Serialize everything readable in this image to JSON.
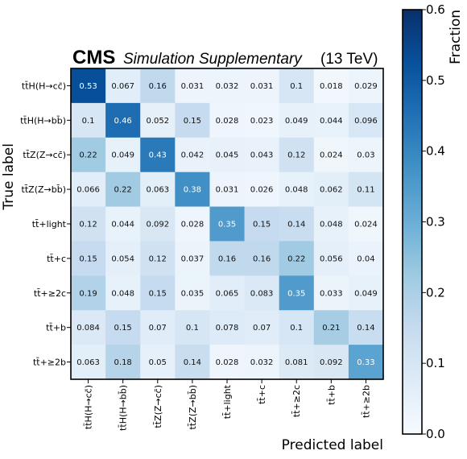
{
  "header": {
    "experiment": "CMS",
    "label": "Simulation Supplementary",
    "energy": "(13 TeV)"
  },
  "chart_data": {
    "type": "heatmap",
    "xlabel": "Predicted label",
    "ylabel": "True label",
    "row_labels": [
      "tt̄H(H→cc̄)",
      "tt̄H(H→bb̄)",
      "tt̄Z(Z→cc̄)",
      "tt̄Z(Z→bb̄)",
      "tt̄+light",
      "tt̄+c",
      "tt̄+≥2c",
      "tt̄+b",
      "tt̄+≥2b"
    ],
    "col_labels": [
      "tt̄H(H→cc̄)",
      "tt̄H(H→bb̄)",
      "tt̄Z(Z→cc̄)",
      "tt̄Z(Z→bb̄)",
      "tt̄+light",
      "tt̄+c",
      "tt̄+≥2c",
      "tt̄+b",
      "tt̄+≥2b"
    ],
    "values": [
      [
        "0.53",
        "0.067",
        "0.16",
        "0.031",
        "0.032",
        "0.031",
        "0.1",
        "0.018",
        "0.029"
      ],
      [
        "0.1",
        "0.46",
        "0.052",
        "0.15",
        "0.028",
        "0.023",
        "0.049",
        "0.044",
        "0.096"
      ],
      [
        "0.22",
        "0.049",
        "0.43",
        "0.042",
        "0.045",
        "0.043",
        "0.12",
        "0.024",
        "0.03"
      ],
      [
        "0.066",
        "0.22",
        "0.063",
        "0.38",
        "0.031",
        "0.026",
        "0.048",
        "0.062",
        "0.11"
      ],
      [
        "0.12",
        "0.044",
        "0.092",
        "0.028",
        "0.35",
        "0.15",
        "0.14",
        "0.048",
        "0.024"
      ],
      [
        "0.15",
        "0.054",
        "0.12",
        "0.037",
        "0.16",
        "0.16",
        "0.22",
        "0.056",
        "0.04"
      ],
      [
        "0.19",
        "0.048",
        "0.15",
        "0.035",
        "0.065",
        "0.083",
        "0.35",
        "0.033",
        "0.049"
      ],
      [
        "0.084",
        "0.15",
        "0.07",
        "0.1",
        "0.078",
        "0.07",
        "0.1",
        "0.21",
        "0.14"
      ],
      [
        "0.063",
        "0.18",
        "0.05",
        "0.14",
        "0.028",
        "0.032",
        "0.081",
        "0.092",
        "0.33"
      ]
    ],
    "colorbar": {
      "label": "Fraction",
      "range": [
        0.0,
        0.6
      ],
      "ticks": [
        "0.0",
        "0.1",
        "0.2",
        "0.3",
        "0.4",
        "0.5",
        "0.6"
      ],
      "cmap": "Blues"
    }
  }
}
